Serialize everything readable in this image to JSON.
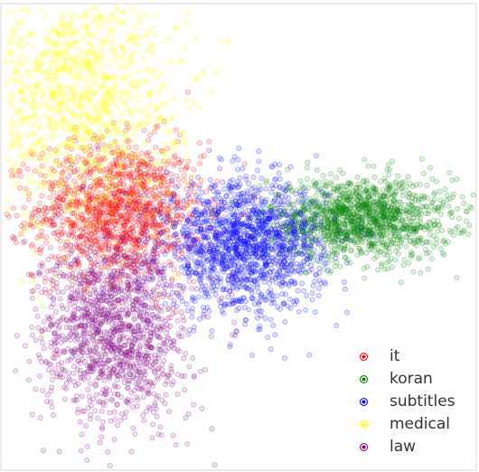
{
  "chart_data": {
    "type": "scatter",
    "title": "",
    "xlabel": "",
    "ylabel": "",
    "axes_visible": false,
    "grid": false,
    "legend_position": "bottom-right",
    "xlim": [
      -5,
      5
    ],
    "ylim": [
      -5,
      5
    ],
    "series": [
      {
        "name": "it",
        "color": "#ff0000",
        "center": [
          -2.6,
          0.6
        ],
        "spread": [
          0.9,
          0.75
        ],
        "count": 1400
      },
      {
        "name": "koran",
        "color": "#008000",
        "center": [
          2.6,
          0.4
        ],
        "spread": [
          1.0,
          0.45
        ],
        "count": 1400
      },
      {
        "name": "subtitles",
        "color": "#0000ff",
        "center": [
          0.1,
          -0.2
        ],
        "spread": [
          0.85,
          0.7
        ],
        "count": 1500
      },
      {
        "name": "medical",
        "color": "#ffff00",
        "center": [
          -3.5,
          3.2
        ],
        "spread": [
          1.1,
          1.5
        ],
        "count": 1300
      },
      {
        "name": "law",
        "color": "#800080",
        "center": [
          -2.7,
          -2.0
        ],
        "spread": [
          0.8,
          1.05
        ],
        "count": 1400
      }
    ]
  },
  "legend": {
    "items": [
      {
        "label": "it",
        "color": "#ff0000"
      },
      {
        "label": "koran",
        "color": "#008000"
      },
      {
        "label": "subtitles",
        "color": "#0000ff"
      },
      {
        "label": "medical",
        "color": "#ffff00"
      },
      {
        "label": "law",
        "color": "#800080"
      }
    ]
  }
}
